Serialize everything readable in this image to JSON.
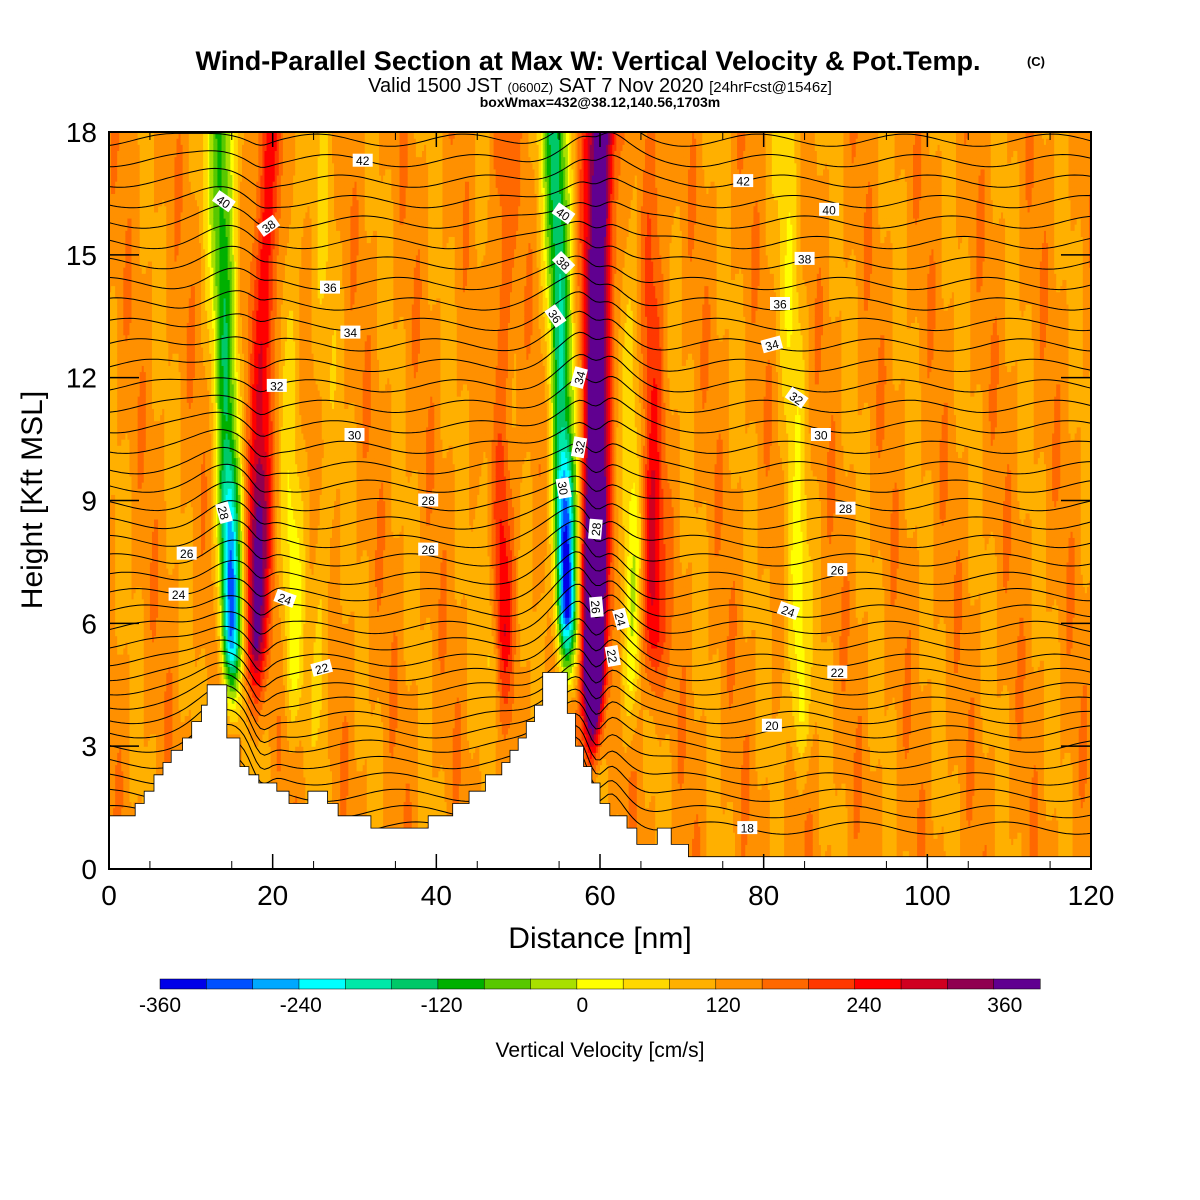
{
  "header": {
    "title": "Wind-Parallel Section at Max W: Vertical Velocity & Pot.Temp.",
    "copyright": "(C)",
    "valid_main": "Valid 1500 JST",
    "valid_utc": "(0600Z)",
    "valid_date": "SAT 7 Nov 2020",
    "forecast": "[24hrFcst@1546z]",
    "boxinfo": "boxWmax=432@38.12,140.56,1703m"
  },
  "chart_data": {
    "type": "heatmap",
    "title": "Wind-Parallel Section at Max W: Vertical Velocity & Pot.Temp.",
    "xlabel": "Distance [nm]",
    "ylabel": "Height [Kft MSL]",
    "xlim": [
      0,
      120
    ],
    "ylim": [
      0,
      18
    ],
    "x_ticks": [
      0,
      20,
      40,
      60,
      80,
      100,
      120
    ],
    "y_ticks": [
      0,
      3,
      6,
      9,
      12,
      15,
      18
    ],
    "colorbar": {
      "label": "Vertical Velocity [cm/s]",
      "range": [
        -360,
        390
      ],
      "step": 30,
      "tick_labels": [
        "-360",
        "-240",
        "-120",
        "0",
        "120",
        "240",
        "360"
      ],
      "tick_values": [
        -360,
        -240,
        -120,
        0,
        120,
        240,
        360
      ],
      "colors": [
        "#0000e8",
        "#0050ff",
        "#00a8ff",
        "#00ffff",
        "#00e8a8",
        "#00c868",
        "#00b000",
        "#58c800",
        "#a8e000",
        "#ffff00",
        "#ffd800",
        "#ffb000",
        "#ff9000",
        "#ff6800",
        "#ff3800",
        "#ff0000",
        "#d00020",
        "#900050",
        "#600090"
      ]
    },
    "terrain": [
      [
        0,
        1.3
      ],
      [
        2,
        1.3
      ],
      [
        3.2,
        1.3
      ],
      [
        3.2,
        1.6
      ],
      [
        4.3,
        1.6
      ],
      [
        4.3,
        1.9
      ],
      [
        5.5,
        1.9
      ],
      [
        5.5,
        2.3
      ],
      [
        6.6,
        2.3
      ],
      [
        6.6,
        2.6
      ],
      [
        7.6,
        2.6
      ],
      [
        7.6,
        2.9
      ],
      [
        9,
        2.9
      ],
      [
        9,
        3.2
      ],
      [
        10.1,
        3.2
      ],
      [
        10.1,
        3.6
      ],
      [
        11.3,
        3.6
      ],
      [
        11.3,
        4.0
      ],
      [
        12,
        4.0
      ],
      [
        12,
        4.5
      ],
      [
        13.8,
        4.5
      ],
      [
        14.4,
        4.5
      ],
      [
        14.4,
        3.2
      ],
      [
        16,
        3.2
      ],
      [
        16,
        2.5
      ],
      [
        17.1,
        2.5
      ],
      [
        17.1,
        2.3
      ],
      [
        18.3,
        2.3
      ],
      [
        18.3,
        2.1
      ],
      [
        20.5,
        2.1
      ],
      [
        20.5,
        1.9
      ],
      [
        22,
        1.9
      ],
      [
        22,
        1.6
      ],
      [
        24.3,
        1.6
      ],
      [
        24.3,
        1.9
      ],
      [
        26.7,
        1.9
      ],
      [
        26.7,
        1.6
      ],
      [
        28,
        1.6
      ],
      [
        28,
        1.3
      ],
      [
        32,
        1.3
      ],
      [
        32,
        1.0
      ],
      [
        36,
        1.0
      ],
      [
        39,
        1.0
      ],
      [
        39,
        1.3
      ],
      [
        42,
        1.3
      ],
      [
        42,
        1.6
      ],
      [
        44,
        1.6
      ],
      [
        44,
        1.9
      ],
      [
        46,
        1.9
      ],
      [
        46,
        2.3
      ],
      [
        48,
        2.3
      ],
      [
        48,
        2.6
      ],
      [
        49,
        2.6
      ],
      [
        49,
        2.9
      ],
      [
        50,
        2.9
      ],
      [
        50,
        3.2
      ],
      [
        51,
        3.2
      ],
      [
        51,
        3.6
      ],
      [
        52,
        3.6
      ],
      [
        52,
        4.0
      ],
      [
        53,
        4.0
      ],
      [
        53,
        4.8
      ],
      [
        55.5,
        4.8
      ],
      [
        56,
        4.8
      ],
      [
        56,
        3.8
      ],
      [
        57,
        3.8
      ],
      [
        57,
        3.0
      ],
      [
        58,
        3.0
      ],
      [
        58,
        2.5
      ],
      [
        59,
        2.5
      ],
      [
        59,
        2.1
      ],
      [
        60,
        2.1
      ],
      [
        60,
        1.6
      ],
      [
        61.2,
        1.6
      ],
      [
        61.2,
        1.3
      ],
      [
        63.3,
        1.3
      ],
      [
        63.3,
        1.0
      ],
      [
        64.5,
        1.0
      ],
      [
        64.5,
        0.6
      ],
      [
        67,
        0.6
      ],
      [
        67,
        1.0
      ],
      [
        68.7,
        1.0
      ],
      [
        68.7,
        0.6
      ],
      [
        70.8,
        0.6
      ],
      [
        70.8,
        0.3
      ],
      [
        74,
        0.3
      ],
      [
        120,
        0.3
      ]
    ],
    "updrafts": [
      {
        "x_bottom": 17.5,
        "x_top": 19.8,
        "z_bottom": 3.3,
        "peak": 200
      },
      {
        "x_bottom": 59.0,
        "x_top": 60.0,
        "z_bottom": 2.4,
        "peak": 432
      },
      {
        "x_bottom": 66.5,
        "x_top": 66.0,
        "z_bottom": 3.5,
        "peak": 130
      },
      {
        "x_bottom": 48.2,
        "x_top": 47.5,
        "z_bottom": 3.5,
        "peak": 110
      }
    ],
    "downdrafts": [
      {
        "x_bottom": 15.2,
        "x_top": 13.7,
        "z_bottom": 3.3,
        "peak": -310
      },
      {
        "x_bottom": 56.2,
        "x_top": 54.6,
        "z_bottom": 4.0,
        "peak": -360
      },
      {
        "x_bottom": 63.4,
        "x_top": 65.0,
        "z_bottom": 2.5,
        "peak": -90
      },
      {
        "x_bottom": 22.5,
        "x_top": 22.0,
        "z_bottom": 2.5,
        "peak": -75
      },
      {
        "x_bottom": 84.5,
        "x_top": 83.0,
        "z_bottom": 1.5,
        "peak": -95
      },
      {
        "x_bottom": 46.8,
        "x_top": 46.3,
        "z_bottom": 3.0,
        "peak": -60
      },
      {
        "x_bottom": 26.0,
        "x_top": 26.3,
        "z_bottom": 2.0,
        "peak": -45
      }
    ],
    "isentropes": {
      "base_levels": [
        1.0,
        1.4,
        1.8,
        2.2,
        2.6,
        3.0,
        3.35,
        3.7,
        4.05,
        4.4,
        4.75,
        5.1,
        5.5,
        5.9,
        6.3,
        6.7,
        7.1,
        7.55,
        8.0,
        8.45,
        8.9,
        9.35,
        9.8,
        10.3,
        10.8,
        11.3,
        11.8,
        12.3,
        12.8,
        13.3,
        13.8,
        14.3,
        14.8,
        15.3,
        15.8,
        16.3,
        16.8,
        17.3,
        17.8
      ]
    },
    "contour_labels": [
      {
        "text": "42",
        "x": 31,
        "z": 17.3,
        "angle": 0
      },
      {
        "text": "40",
        "x": 14,
        "z": 16.3,
        "angle": 35
      },
      {
        "text": "38",
        "x": 19.5,
        "z": 15.7,
        "angle": -35
      },
      {
        "text": "36",
        "x": 27,
        "z": 14.2,
        "angle": 0
      },
      {
        "text": "34",
        "x": 29.5,
        "z": 13.1,
        "angle": 0
      },
      {
        "text": "32",
        "x": 20.5,
        "z": 11.8,
        "angle": 0
      },
      {
        "text": "30",
        "x": 30,
        "z": 10.6,
        "angle": 0
      },
      {
        "text": "28",
        "x": 14,
        "z": 8.7,
        "angle": 75
      },
      {
        "text": "28",
        "x": 39,
        "z": 9.0,
        "angle": 0
      },
      {
        "text": "26",
        "x": 9.5,
        "z": 7.7,
        "angle": 0
      },
      {
        "text": "26",
        "x": 39,
        "z": 7.8,
        "angle": 0
      },
      {
        "text": "24",
        "x": 8.5,
        "z": 6.7,
        "angle": 0
      },
      {
        "text": "24",
        "x": 21.5,
        "z": 6.6,
        "angle": 20
      },
      {
        "text": "22",
        "x": 26,
        "z": 4.9,
        "angle": -15
      },
      {
        "text": "40",
        "x": 55.5,
        "z": 16.0,
        "angle": 35
      },
      {
        "text": "38",
        "x": 55.5,
        "z": 14.8,
        "angle": 45
      },
      {
        "text": "36",
        "x": 54.5,
        "z": 13.5,
        "angle": 55
      },
      {
        "text": "34",
        "x": 57.5,
        "z": 12.0,
        "angle": -75
      },
      {
        "text": "32",
        "x": 57.5,
        "z": 10.3,
        "angle": -80
      },
      {
        "text": "30",
        "x": 55.5,
        "z": 9.3,
        "angle": 80
      },
      {
        "text": "28",
        "x": 59.5,
        "z": 8.3,
        "angle": -85
      },
      {
        "text": "26",
        "x": 59.5,
        "z": 6.4,
        "angle": 85
      },
      {
        "text": "24",
        "x": 62.5,
        "z": 6.1,
        "angle": 75
      },
      {
        "text": "22",
        "x": 61.5,
        "z": 5.2,
        "angle": 80
      },
      {
        "text": "42",
        "x": 77.5,
        "z": 16.8,
        "angle": 0
      },
      {
        "text": "40",
        "x": 88,
        "z": 16.1,
        "angle": 0
      },
      {
        "text": "38",
        "x": 85,
        "z": 14.9,
        "angle": 0
      },
      {
        "text": "36",
        "x": 82,
        "z": 13.8,
        "angle": 0
      },
      {
        "text": "34",
        "x": 81,
        "z": 12.8,
        "angle": -15
      },
      {
        "text": "32",
        "x": 84,
        "z": 11.5,
        "angle": 35
      },
      {
        "text": "30",
        "x": 87,
        "z": 10.6,
        "angle": 0
      },
      {
        "text": "28",
        "x": 90,
        "z": 8.8,
        "angle": 0
      },
      {
        "text": "26",
        "x": 89,
        "z": 7.3,
        "angle": 0
      },
      {
        "text": "24",
        "x": 83,
        "z": 6.3,
        "angle": 20
      },
      {
        "text": "22",
        "x": 89,
        "z": 4.8,
        "angle": 0
      },
      {
        "text": "20",
        "x": 81,
        "z": 3.5,
        "angle": 0
      },
      {
        "text": "18",
        "x": 78,
        "z": 1.0,
        "angle": 0
      }
    ],
    "grid": false,
    "legend": "bottom"
  }
}
